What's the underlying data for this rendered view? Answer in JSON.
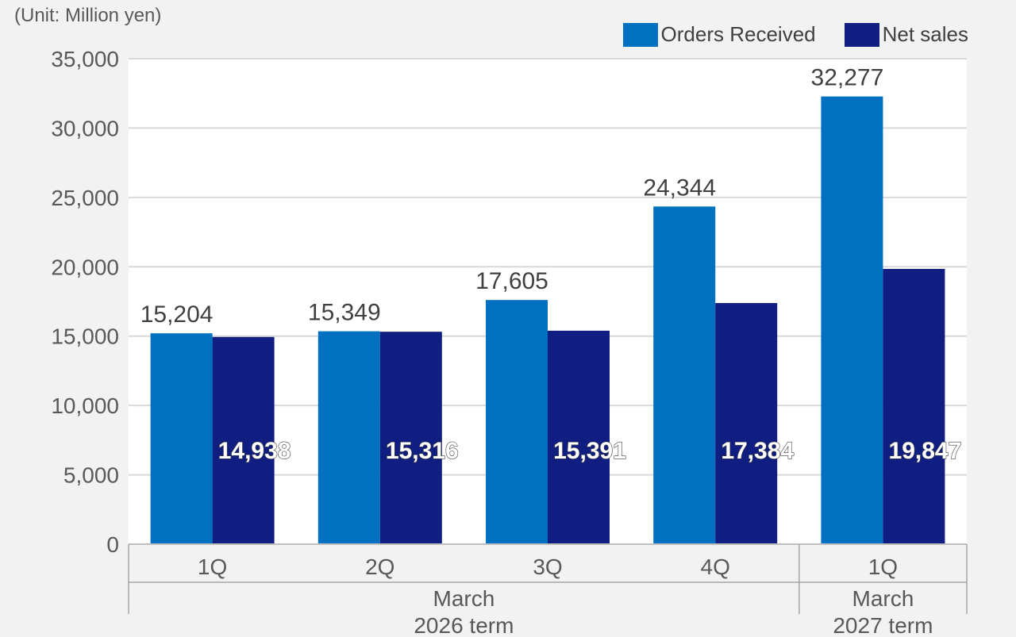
{
  "unit_label": "(Unit: Million yen)",
  "colors": {
    "orders": "#0070c0",
    "sales": "#0f1e80",
    "grid": "#d9d9d9",
    "axis_text": "#595959",
    "label_dark": "#404040",
    "label_light": "#ffffff"
  },
  "chart_data": {
    "type": "bar",
    "unit": "Million yen",
    "categories": [
      "1Q",
      "2Q",
      "3Q",
      "4Q",
      "1Q"
    ],
    "groups": [
      {
        "label_lines": [
          "March",
          "2026 term"
        ],
        "span": [
          0,
          3
        ]
      },
      {
        "label_lines": [
          "March",
          "2027 term"
        ],
        "span": [
          4,
          4
        ]
      }
    ],
    "series": [
      {
        "name": "Orders Received",
        "color": "#0070c0",
        "values": [
          15204,
          15349,
          17605,
          24344,
          32277
        ]
      },
      {
        "name": "Net sales",
        "color": "#0f1e80",
        "values": [
          14938,
          15316,
          15391,
          17384,
          19847
        ]
      }
    ],
    "data_labels": {
      "orders": [
        "15,204",
        "15,349",
        "17,605",
        "24,344",
        "32,277"
      ],
      "sales": [
        "14,938",
        "15,316",
        "15,391",
        "17,384",
        "19,847"
      ]
    },
    "ylim": [
      0,
      35000
    ],
    "yticks": [
      0,
      5000,
      10000,
      15000,
      20000,
      25000,
      30000,
      35000
    ],
    "ytick_labels": [
      "0",
      "5,000",
      "10,000",
      "15,000",
      "20,000",
      "25,000",
      "30,000",
      "35,000"
    ],
    "grid": true,
    "legend": "top-right"
  }
}
